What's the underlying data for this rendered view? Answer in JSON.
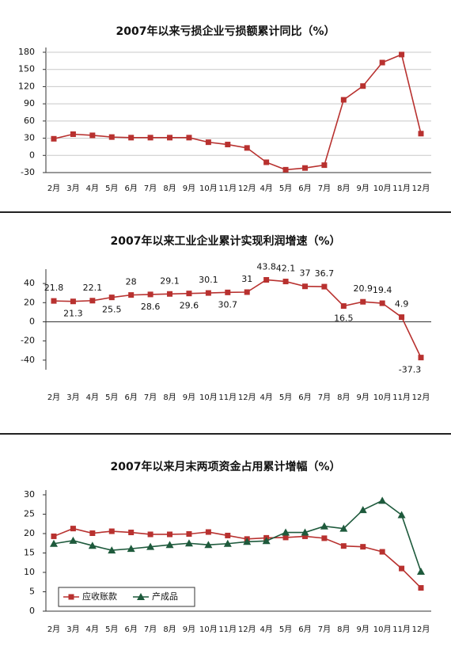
{
  "chart_data": [
    {
      "type": "line",
      "title": "2007年以来亏损企业亏损额累计同比（%）",
      "categories": [
        "2月",
        "3月",
        "4月",
        "5月",
        "6月",
        "7月",
        "8月",
        "9月",
        "10月",
        "11月",
        "12月",
        "4月",
        "5月",
        "6月",
        "7月",
        "8月",
        "9月",
        "10月",
        "11月",
        "12月"
      ],
      "series": [
        {
          "name": null,
          "color": "#b8312f",
          "values": [
            29,
            37,
            35,
            32,
            31,
            31,
            31,
            31,
            23,
            19,
            13,
            -12,
            -25,
            -22,
            -17,
            97,
            121,
            162,
            176,
            38
          ]
        }
      ],
      "ylim": [
        -30,
        180
      ],
      "yticks": [
        -30,
        0,
        30,
        60,
        90,
        120,
        150,
        180
      ],
      "grid": true
    },
    {
      "type": "line",
      "title": "2007年以来工业企业累计实现利润增速（%）",
      "categories": [
        "2月",
        "3月",
        "4月",
        "5月",
        "6月",
        "7月",
        "8月",
        "9月",
        "10月",
        "11月",
        "12月",
        "4月",
        "5月",
        "6月",
        "7月",
        "8月",
        "9月",
        "10月",
        "11月",
        "12月"
      ],
      "series": [
        {
          "name": null,
          "color": "#b8312f",
          "values": [
            21.8,
            21.3,
            22.1,
            25.5,
            28,
            28.6,
            29.1,
            29.6,
            30.1,
            30.7,
            31,
            43.8,
            42.1,
            37,
            36.7,
            16.5,
            20.9,
            19.4,
            4.9,
            -37.3
          ],
          "show_values": true
        }
      ],
      "ylim": [
        -50,
        50
      ],
      "yticks": [
        -40,
        -20,
        0,
        20,
        40
      ],
      "grid": false
    },
    {
      "type": "line",
      "title": "2007年以来月末两项资金占用累计增幅（%）",
      "categories": [
        "2月",
        "3月",
        "4月",
        "5月",
        "6月",
        "7月",
        "8月",
        "9月",
        "10月",
        "11月",
        "12月",
        "4月",
        "5月",
        "6月",
        "7月",
        "8月",
        "9月",
        "10月",
        "11月",
        "12月"
      ],
      "series": [
        {
          "name": "应收账款",
          "color": "#b8312f",
          "marker": "square",
          "values": [
            19.3,
            21.3,
            20.1,
            20.6,
            20.3,
            19.8,
            19.8,
            19.9,
            20.4,
            19.5,
            18.6,
            18.9,
            19.0,
            19.3,
            18.8,
            16.8,
            16.6,
            15.3,
            11,
            6
          ]
        },
        {
          "name": "产成品",
          "color": "#1e5a3c",
          "marker": "triangle",
          "values": [
            17.4,
            18.2,
            16.9,
            15.7,
            16.1,
            16.6,
            17.1,
            17.5,
            17.1,
            17.4,
            17.9,
            18.1,
            20.3,
            20.3,
            21.9,
            21.3,
            26.1,
            28.5,
            24.8,
            10.2
          ]
        }
      ],
      "ylim": [
        0,
        30
      ],
      "yticks": [
        0,
        5,
        10,
        15,
        20,
        25,
        30
      ],
      "grid": false,
      "legend": "lower-left"
    }
  ]
}
